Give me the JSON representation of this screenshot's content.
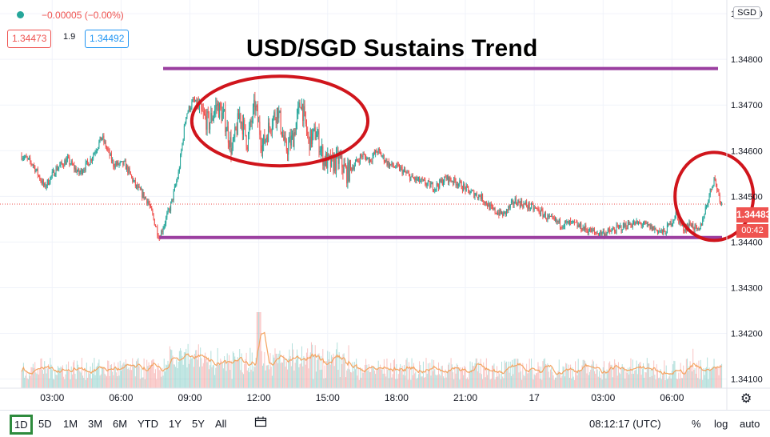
{
  "header": {
    "change_text": "−0.00005 (−0.00%)",
    "bid": "1.34473",
    "spread": "1.9",
    "ask": "1.34492",
    "currency": "SGD"
  },
  "title": "USD/SGD Sustains Trend",
  "last_price_tag": "1.34483",
  "countdown_tag": "00:42",
  "toolbar": {
    "timeframes": [
      "1D",
      "5D",
      "1M",
      "3M",
      "6M",
      "YTD",
      "1Y",
      "5Y",
      "All"
    ],
    "active_timeframe": "1D",
    "clock": "08:12:17 (UTC)",
    "percent": "%",
    "log": "log",
    "auto": "auto"
  },
  "colors": {
    "up": "#26a69a",
    "down": "#ef5350",
    "annotation_line": "#9b3fa0",
    "annotation_circle": "#d0151c",
    "volume_ma": "#f4a460"
  },
  "chart_data": {
    "type": "line",
    "title": "USD/SGD Sustains Trend",
    "xlabel": "",
    "ylabel": "",
    "x_ticks": [
      "03:00",
      "06:00",
      "09:00",
      "12:00",
      "15:00",
      "18:00",
      "21:00",
      "17",
      "03:00",
      "06:00"
    ],
    "y_ticks": [
      1.341,
      1.342,
      1.343,
      1.344,
      1.345,
      1.346,
      1.347,
      1.348,
      1.349
    ],
    "ylim": [
      1.3408,
      1.3493
    ],
    "x_range": [
      "2021-03-16T01:40",
      "2021-03-17T08:15"
    ],
    "series": [
      {
        "x": [
          "01:40",
          "02:10",
          "02:40",
          "03:10",
          "03:40",
          "04:10",
          "04:40",
          "05:10",
          "05:40",
          "06:10",
          "06:40",
          "07:10",
          "07:40",
          "08:10",
          "08:30",
          "08:50",
          "09:10",
          "09:30",
          "09:50",
          "10:10",
          "10:30",
          "10:50",
          "11:10",
          "11:30",
          "11:50",
          "12:10",
          "12:30",
          "12:50",
          "13:10",
          "13:30",
          "13:50",
          "14:10",
          "14:30",
          "14:50",
          "15:10",
          "15:30",
          "15:50",
          "16:10",
          "16:30",
          "16:50",
          "17:10",
          "17:40",
          "18:10",
          "18:40",
          "19:10",
          "19:40",
          "20:10",
          "20:40",
          "21:10",
          "21:40",
          "22:10",
          "22:40",
          "23:10",
          "23:40",
          "00:10",
          "00:40",
          "01:10",
          "01:40",
          "02:10",
          "02:40",
          "03:10",
          "03:40",
          "04:10",
          "04:40",
          "05:10",
          "05:40",
          "06:10",
          "06:30",
          "06:50",
          "07:10",
          "07:30",
          "07:50",
          "08:10"
        ],
        "values": [
          1.3459,
          1.3457,
          1.3452,
          1.3456,
          1.3458,
          1.3455,
          1.3458,
          1.3463,
          1.3457,
          1.3457,
          1.3452,
          1.3449,
          1.3441,
          1.3448,
          1.3455,
          1.3468,
          1.3471,
          1.3468,
          1.3466,
          1.347,
          1.3467,
          1.346,
          1.3468,
          1.3462,
          1.347,
          1.3461,
          1.3466,
          1.3469,
          1.346,
          1.3463,
          1.3471,
          1.3462,
          1.3464,
          1.3458,
          1.3457,
          1.3458,
          1.3455,
          1.3457,
          1.3459,
          1.3458,
          1.346,
          1.3457,
          1.3456,
          1.3454,
          1.3453,
          1.3452,
          1.3454,
          1.3453,
          1.3451,
          1.345,
          1.3447,
          1.3446,
          1.3449,
          1.3448,
          1.3447,
          1.3445,
          1.3444,
          1.3444,
          1.3443,
          1.3442,
          1.3442,
          1.3443,
          1.3444,
          1.3444,
          1.3443,
          1.3442,
          1.3446,
          1.3443,
          1.3444,
          1.3442,
          1.3448,
          1.3454,
          1.34483
        ]
      }
    ],
    "annotations": {
      "resistance_level": 1.3478,
      "support_level": 1.3441,
      "ellipse_range": [
        "09:30",
        "16:20"
      ],
      "circle_range": [
        "06:10",
        "08:15"
      ]
    },
    "volume": {
      "peak_time": "12:00"
    },
    "grid": true
  }
}
